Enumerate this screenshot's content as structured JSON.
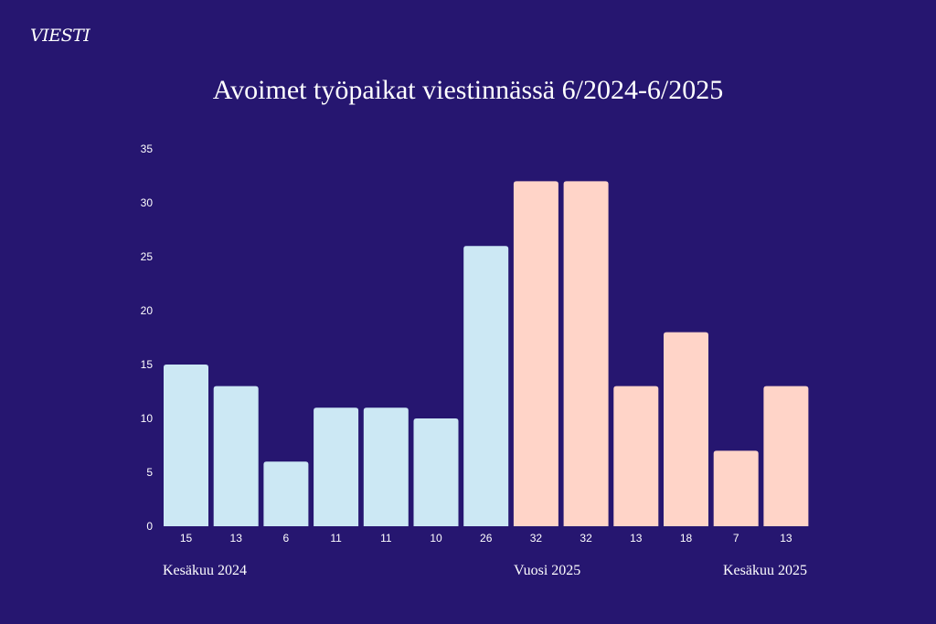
{
  "logo": "VIESTI",
  "chart_data": {
    "type": "bar",
    "title": "Avoimet työpaikat viestinnässä 6/2024-6/2025",
    "categories": [
      "15",
      "13",
      "6",
      "11",
      "11",
      "10",
      "26",
      "32",
      "32",
      "13",
      "18",
      "7",
      "13"
    ],
    "values": [
      15,
      13,
      6,
      11,
      11,
      10,
      26,
      32,
      32,
      13,
      18,
      7,
      13
    ],
    "bar_colors": [
      "#cce8f4",
      "#cce8f4",
      "#cce8f4",
      "#cce8f4",
      "#cce8f4",
      "#cce8f4",
      "#cce8f4",
      "#ffd4c8",
      "#ffd4c8",
      "#ffd4c8",
      "#ffd4c8",
      "#ffd4c8",
      "#ffd4c8"
    ],
    "yticks": [
      0,
      5,
      10,
      15,
      20,
      25,
      30,
      35
    ],
    "ylim": [
      0,
      35
    ],
    "grid": false,
    "xlabel": "",
    "ylabel": "",
    "annotations": [
      "Kesäkuu 2024",
      "Vuosi 2025",
      "Kesäkuu 2025"
    ]
  },
  "colors": {
    "background": "#261670",
    "series_2024": "#cce8f4",
    "series_2025": "#ffd4c8"
  }
}
